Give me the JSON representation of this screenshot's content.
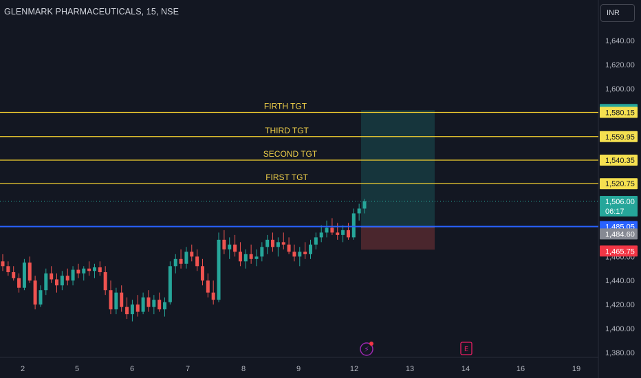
{
  "header": {
    "title": "GLENMARK PHARMACEUTICALS, 15, NSE",
    "currency": "INR"
  },
  "chart_data": {
    "type": "candlestick",
    "y_ticks": [
      "1,640.00",
      "1,620.00",
      "1,600.00",
      "1,580.00",
      "1,560.00",
      "1,540.00",
      "1,520.00",
      "1,500.00",
      "1,480.00",
      "1,460.00",
      "1,440.00",
      "1,420.00",
      "1,400.00",
      "1,380.00"
    ],
    "y_tick_values": [
      1640,
      1620,
      1600,
      1580,
      1560,
      1540,
      1520,
      1500,
      1480,
      1460,
      1440,
      1420,
      1400,
      1380
    ],
    "x_ticks": [
      "2",
      "5",
      "6",
      "7",
      "8",
      "9",
      "12",
      "13",
      "14",
      "16",
      "19"
    ],
    "ylim": [
      1377,
      1668
    ],
    "target_lines": [
      {
        "label": "FIRTH TGT",
        "value": 1580.15,
        "tag": "1,580.15"
      },
      {
        "label": "THIRD TGT",
        "value": 1559.95,
        "tag": "1,559.95"
      },
      {
        "label": "SECOND TGT",
        "value": 1540.35,
        "tag": "1,540.35"
      },
      {
        "label": "FIRST TGT",
        "value": 1520.75,
        "tag": "1,520.75"
      }
    ],
    "entry_line": {
      "value": 1485.05,
      "tag": "1,485.05",
      "color": "#2962ff"
    },
    "position": {
      "take_profit": 1582.0,
      "tp_tag": "1,582.00",
      "entry": 1484.6,
      "entry_tag": "1,484.60",
      "stop_loss": 1465.75,
      "sl_tag": "1,465.75"
    },
    "current_price": {
      "value": 1506.0,
      "tag": "1,506.00",
      "countdown": "06:17"
    },
    "colors": {
      "up": "#26a69a",
      "down": "#ef5350",
      "target": "#f5d130",
      "background": "#131722"
    },
    "candles": [
      [
        1456,
        1462,
        1448,
        1452
      ],
      [
        1452,
        1456,
        1444,
        1447
      ],
      [
        1447,
        1452,
        1440,
        1442
      ],
      [
        1442,
        1446,
        1430,
        1434
      ],
      [
        1434,
        1458,
        1432,
        1455
      ],
      [
        1455,
        1460,
        1438,
        1440
      ],
      [
        1440,
        1444,
        1416,
        1420
      ],
      [
        1420,
        1436,
        1418,
        1432
      ],
      [
        1432,
        1450,
        1428,
        1446
      ],
      [
        1446,
        1452,
        1438,
        1441
      ],
      [
        1441,
        1446,
        1430,
        1436
      ],
      [
        1436,
        1448,
        1432,
        1444
      ],
      [
        1444,
        1450,
        1436,
        1440
      ],
      [
        1440,
        1452,
        1436,
        1449
      ],
      [
        1449,
        1454,
        1442,
        1446
      ],
      [
        1446,
        1452,
        1440,
        1450
      ],
      [
        1450,
        1456,
        1444,
        1448
      ],
      [
        1448,
        1454,
        1442,
        1451
      ],
      [
        1451,
        1456,
        1444,
        1447
      ],
      [
        1447,
        1452,
        1428,
        1432
      ],
      [
        1432,
        1440,
        1412,
        1416
      ],
      [
        1416,
        1434,
        1412,
        1430
      ],
      [
        1430,
        1436,
        1414,
        1418
      ],
      [
        1418,
        1426,
        1408,
        1412
      ],
      [
        1412,
        1424,
        1406,
        1420
      ],
      [
        1420,
        1428,
        1410,
        1414
      ],
      [
        1414,
        1430,
        1412,
        1426
      ],
      [
        1426,
        1432,
        1414,
        1418
      ],
      [
        1418,
        1428,
        1412,
        1424
      ],
      [
        1424,
        1430,
        1414,
        1416
      ],
      [
        1416,
        1426,
        1410,
        1422
      ],
      [
        1422,
        1456,
        1420,
        1452
      ],
      [
        1452,
        1462,
        1446,
        1458
      ],
      [
        1458,
        1466,
        1450,
        1454
      ],
      [
        1454,
        1468,
        1450,
        1464
      ],
      [
        1464,
        1470,
        1456,
        1460
      ],
      [
        1460,
        1466,
        1448,
        1452
      ],
      [
        1452,
        1458,
        1436,
        1440
      ],
      [
        1440,
        1446,
        1426,
        1430
      ],
      [
        1430,
        1440,
        1420,
        1424
      ],
      [
        1424,
        1480,
        1422,
        1474
      ],
      [
        1474,
        1482,
        1462,
        1466
      ],
      [
        1466,
        1476,
        1458,
        1470
      ],
      [
        1470,
        1478,
        1460,
        1464
      ],
      [
        1464,
        1472,
        1452,
        1456
      ],
      [
        1456,
        1466,
        1450,
        1462
      ],
      [
        1462,
        1470,
        1454,
        1458
      ],
      [
        1458,
        1466,
        1452,
        1460
      ],
      [
        1460,
        1472,
        1456,
        1468
      ],
      [
        1468,
        1478,
        1462,
        1474
      ],
      [
        1474,
        1480,
        1464,
        1468
      ],
      [
        1468,
        1476,
        1460,
        1472
      ],
      [
        1472,
        1480,
        1466,
        1470
      ],
      [
        1470,
        1476,
        1462,
        1464
      ],
      [
        1464,
        1470,
        1456,
        1460
      ],
      [
        1460,
        1468,
        1452,
        1464
      ],
      [
        1464,
        1472,
        1458,
        1462
      ],
      [
        1462,
        1474,
        1458,
        1470
      ],
      [
        1470,
        1480,
        1466,
        1476
      ],
      [
        1476,
        1486,
        1472,
        1480
      ],
      [
        1480,
        1490,
        1476,
        1484
      ],
      [
        1484,
        1492,
        1478,
        1480
      ],
      [
        1480,
        1488,
        1474,
        1478
      ],
      [
        1478,
        1486,
        1472,
        1482
      ],
      [
        1482,
        1488,
        1474,
        1476
      ],
      [
        1476,
        1500,
        1474,
        1496
      ],
      [
        1496,
        1504,
        1490,
        1500
      ],
      [
        1500,
        1508,
        1496,
        1506
      ]
    ]
  }
}
